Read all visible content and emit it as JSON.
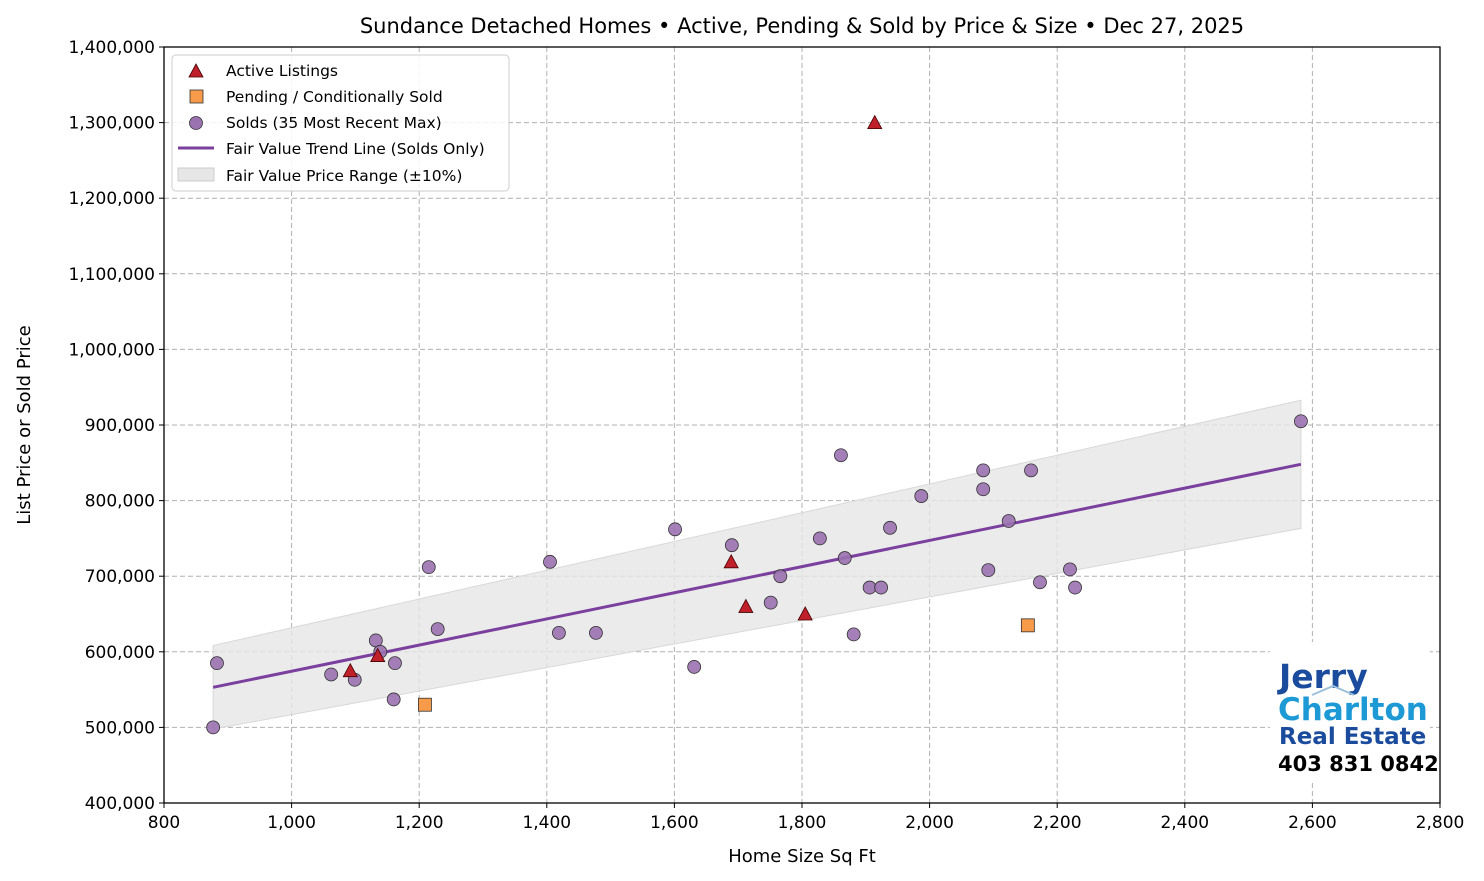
{
  "chart_data": {
    "type": "scatter",
    "title": "Sundance Detached Homes • Active, Pending & Sold by Price & Size • Dec 27, 2025",
    "xlabel": "Home Size Sq Ft",
    "ylabel": "List Price or Sold Price",
    "xlim": [
      800,
      2800
    ],
    "ylim": [
      400000,
      1400000
    ],
    "xticks": [
      800,
      1000,
      1200,
      1400,
      1600,
      1800,
      2000,
      2200,
      2400,
      2600,
      2800
    ],
    "xtick_labels": [
      "800",
      "1,000",
      "1,200",
      "1,400",
      "1,600",
      "1,800",
      "2,000",
      "2,200",
      "2,400",
      "2,600",
      "2,800"
    ],
    "yticks": [
      400000,
      500000,
      600000,
      700000,
      800000,
      900000,
      1000000,
      1100000,
      1200000,
      1300000,
      1400000
    ],
    "ytick_labels": [
      "400,000",
      "500,000",
      "600,000",
      "700,000",
      "800,000",
      "900,000",
      "1,000,000",
      "1,100,000",
      "1,200,000",
      "1,300,000",
      "1,400,000"
    ],
    "grid": true,
    "legend_placement": "top-left",
    "series": [
      {
        "name": "Active Listings",
        "marker": "triangle",
        "color": "#c0202a",
        "points": [
          [
            1092,
            575000
          ],
          [
            1135,
            595000
          ],
          [
            1689,
            719000
          ],
          [
            1712,
            660000
          ],
          [
            1805,
            650000
          ],
          [
            1914,
            1300000
          ]
        ]
      },
      {
        "name": "Pending / Conditionally Sold",
        "marker": "square",
        "color": "#f79a4a",
        "points": [
          [
            1209,
            530000
          ],
          [
            2154,
            635000
          ]
        ]
      },
      {
        "name": "Solds (35 Most Recent Max)",
        "marker": "circle",
        "color": "#9b72b0",
        "points": [
          [
            877,
            500000
          ],
          [
            883,
            585000
          ],
          [
            1062,
            570000
          ],
          [
            1099,
            563000
          ],
          [
            1132,
            615000
          ],
          [
            1139,
            600000
          ],
          [
            1162,
            585000
          ],
          [
            1160,
            537000
          ],
          [
            1215,
            712000
          ],
          [
            1229,
            630000
          ],
          [
            1405,
            719000
          ],
          [
            1419,
            625000
          ],
          [
            1477,
            625000
          ],
          [
            1601,
            762000
          ],
          [
            1631,
            580000
          ],
          [
            1690,
            741000
          ],
          [
            1766,
            700000
          ],
          [
            1751,
            665000
          ],
          [
            1828,
            750000
          ],
          [
            1861,
            860000
          ],
          [
            1867,
            724000
          ],
          [
            1881,
            623000
          ],
          [
            1906,
            685000
          ],
          [
            1924,
            685000
          ],
          [
            1938,
            764000
          ],
          [
            1987,
            806000
          ],
          [
            2084,
            840000
          ],
          [
            2084,
            815000
          ],
          [
            2092,
            708000
          ],
          [
            2124,
            773000
          ],
          [
            2159,
            840000
          ],
          [
            2173,
            692000
          ],
          [
            2220,
            709000
          ],
          [
            2228,
            685000
          ],
          [
            2582,
            905000
          ]
        ]
      },
      {
        "name": "Fair Value Trend Line (Solds Only)",
        "type": "line",
        "color": "#7b3f9e",
        "points": [
          [
            877,
            553000
          ],
          [
            2582,
            848000
          ]
        ]
      },
      {
        "name": "Fair Value Price Range (±10%)",
        "type": "band",
        "color": "#e6e6e6",
        "band_fraction": 0.1
      }
    ]
  },
  "logo": {
    "line1": "Jerry",
    "line2": "Charlton",
    "line3": "Real Estate",
    "phone": "403 831 0842"
  }
}
